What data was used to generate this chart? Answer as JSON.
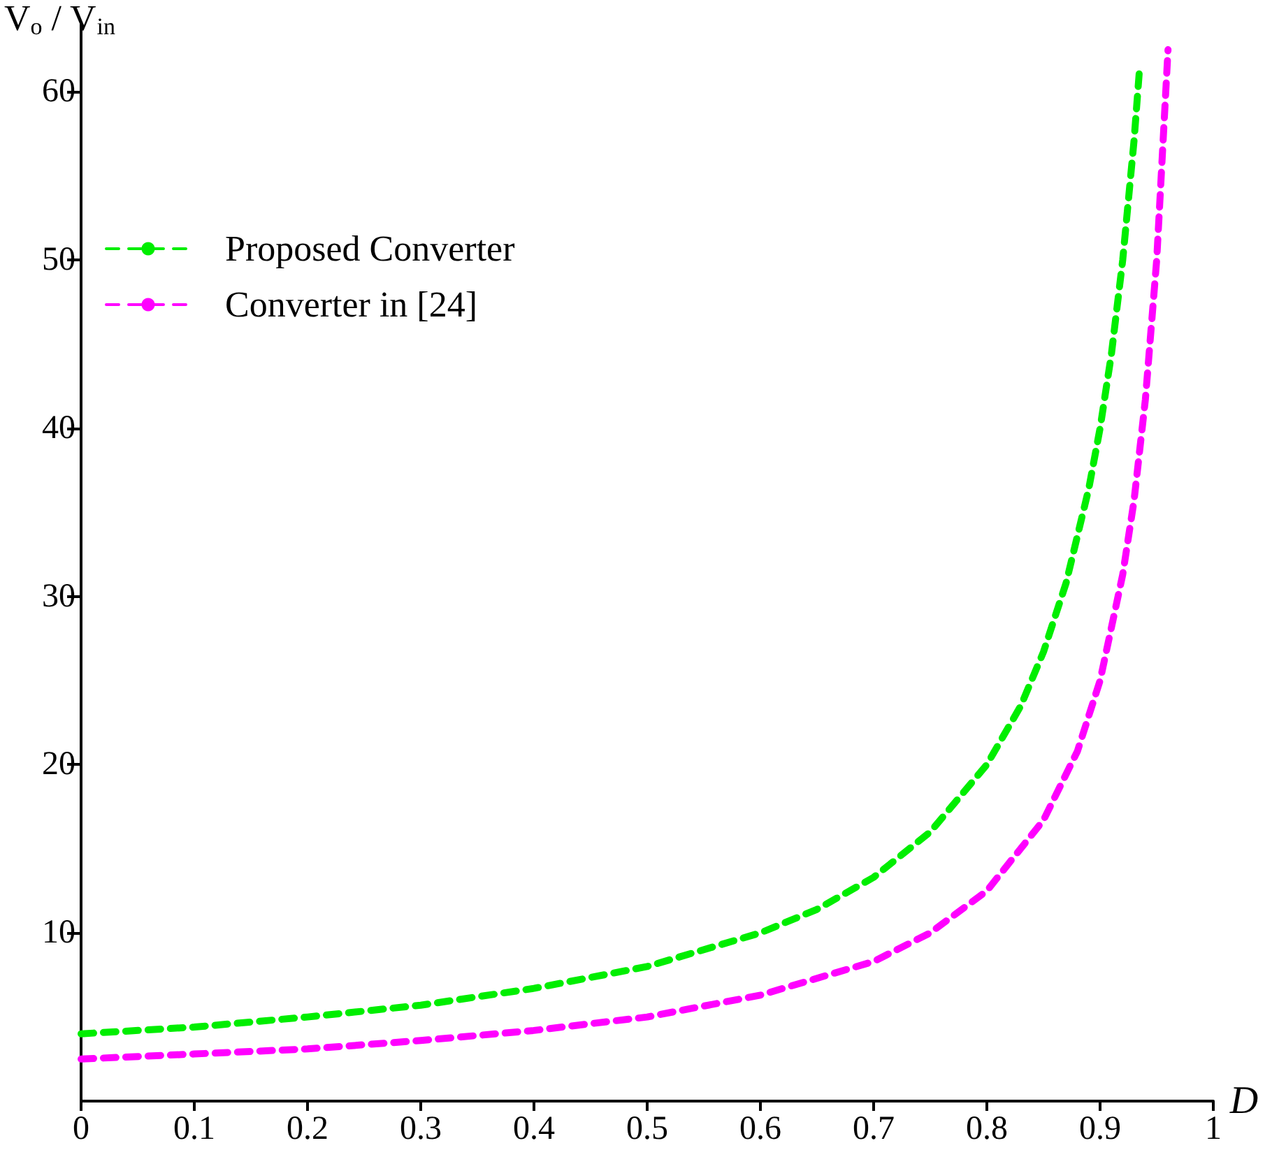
{
  "chart_data": {
    "type": "line",
    "xlabel": "D",
    "ylabel": "V$_{o}$ / V$_{in}$",
    "xlim": [
      0,
      1
    ],
    "xticks": [
      0,
      0.1,
      0.2,
      0.3,
      0.4,
      0.5,
      0.6,
      0.7,
      0.8,
      0.9,
      1
    ],
    "ylim": [
      0,
      64
    ],
    "yticks": [
      10,
      20,
      30,
      40,
      50,
      60
    ],
    "grid": false,
    "legend": "top left",
    "marker": "none",
    "series": [
      {
        "name": "Proposed Converter",
        "color": "#00ee00",
        "line_style": "dashed",
        "x": [
          0,
          0.1,
          0.2,
          0.3,
          0.4,
          0.5,
          0.6,
          0.65,
          0.7,
          0.75,
          0.8,
          0.83,
          0.85,
          0.87,
          0.89,
          0.9,
          0.91,
          0.92,
          0.93,
          0.935
        ],
        "values": [
          4,
          4.4,
          5,
          5.7,
          6.7,
          8,
          10,
          11.4,
          13.3,
          16,
          20,
          23.5,
          26.7,
          30.8,
          36.4,
          40,
          44.4,
          50,
          57.1,
          61.5
        ]
      },
      {
        "name": "Converter in [24]",
        "color": "#ff00ff",
        "line_style": "dashed",
        "x": [
          0,
          0.1,
          0.2,
          0.3,
          0.4,
          0.5,
          0.6,
          0.7,
          0.75,
          0.8,
          0.85,
          0.88,
          0.9,
          0.92,
          0.93,
          0.94,
          0.95,
          0.96
        ],
        "values": [
          2.5,
          2.8,
          3.1,
          3.6,
          4.2,
          5,
          6.3,
          8.3,
          10,
          12.5,
          16.7,
          20.8,
          25,
          31.3,
          35.7,
          41.7,
          50,
          62.5
        ]
      }
    ]
  }
}
